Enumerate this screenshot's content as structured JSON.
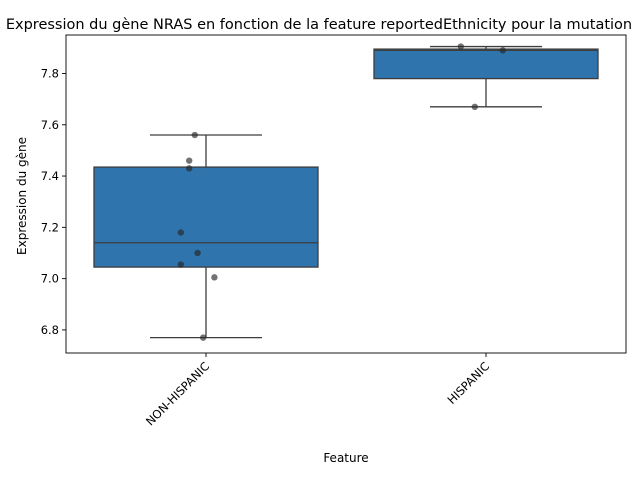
{
  "chart_data": {
    "type": "box",
    "title": "Expression du gène NRAS en fonction de la feature reportedEthnicity pour la mutation",
    "xlabel": "Feature",
    "ylabel": "Expression du gène",
    "categories": [
      "NON-HISPANIC",
      "HISPANIC"
    ],
    "ylim": [
      6.71,
      7.95
    ],
    "yticks": [
      6.8,
      7.0,
      7.2,
      7.4,
      7.6,
      7.8
    ],
    "grid": false,
    "box_color": "#2f74ad",
    "boxes": [
      {
        "category": "NON-HISPANIC",
        "whisker_low": 6.77,
        "q1": 7.045,
        "median": 7.14,
        "q3": 7.435,
        "whisker_high": 7.56
      },
      {
        "category": "HISPANIC",
        "whisker_low": 7.67,
        "q1": 7.78,
        "median": 7.89,
        "q3": 7.895,
        "whisker_high": 7.905
      }
    ],
    "points": [
      {
        "category": "NON-HISPANIC",
        "jitter": -0.04,
        "y": 7.56
      },
      {
        "category": "NON-HISPANIC",
        "jitter": -0.06,
        "y": 7.46
      },
      {
        "category": "NON-HISPANIC",
        "jitter": -0.06,
        "y": 7.43
      },
      {
        "category": "NON-HISPANIC",
        "jitter": -0.09,
        "y": 7.18
      },
      {
        "category": "NON-HISPANIC",
        "jitter": -0.03,
        "y": 7.1
      },
      {
        "category": "NON-HISPANIC",
        "jitter": -0.09,
        "y": 7.055
      },
      {
        "category": "NON-HISPANIC",
        "jitter": 0.03,
        "y": 7.005
      },
      {
        "category": "NON-HISPANIC",
        "jitter": -0.01,
        "y": 6.77
      },
      {
        "category": "HISPANIC",
        "jitter": -0.09,
        "y": 7.905
      },
      {
        "category": "HISPANIC",
        "jitter": 0.06,
        "y": 7.89
      },
      {
        "category": "HISPANIC",
        "jitter": -0.04,
        "y": 7.67
      }
    ]
  }
}
